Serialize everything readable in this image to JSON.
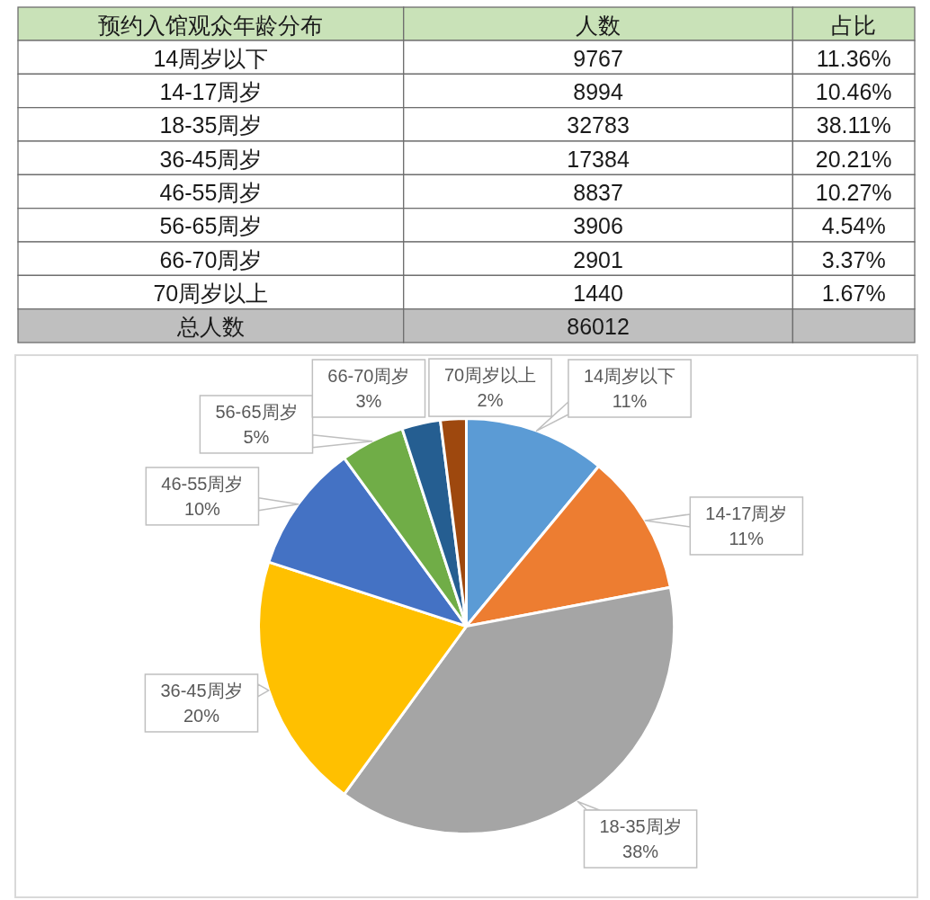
{
  "chart_data": [
    {
      "type": "other",
      "title": "预约入馆观众年龄分布",
      "categories": [
        "14周岁以下",
        "14-17周岁",
        "18-35周岁",
        "36-45周岁",
        "46-55周岁",
        "56-65周岁",
        "66-70周岁",
        "70周岁以上",
        "总人数"
      ],
      "series": [
        {
          "name": "人数",
          "values": [
            9767,
            8994,
            32783,
            17384,
            8837,
            3906,
            2901,
            1440,
            86012
          ],
          "colors": [
            "#ffffff",
            "#ffffff",
            "#ffffff",
            "#ffffff",
            "#ffffff",
            "#ffffff",
            "#ffffff",
            "#ffffff",
            "#bfbfbf"
          ]
        },
        {
          "name": "占比",
          "values": [
            11.36,
            10.46,
            38.11,
            20.21,
            10.27,
            4.54,
            3.37,
            1.67,
            null
          ],
          "value_labels": [
            "11.36%",
            "10.46%",
            "38.11%",
            "20.21%",
            "10.27%",
            "4.54%",
            "3.37%",
            "1.67%",
            null
          ],
          "colors": [
            "#ffffff",
            "#ffffff",
            "#ffffff",
            "#ffffff",
            "#ffffff",
            "#ffffff",
            "#ffffff",
            "#ffffff",
            "#bfbfbf"
          ]
        }
      ],
      "data_labels": true,
      "colors": [
        "#ffffff",
        "#ffffff",
        "#ffffff",
        "#ffffff",
        "#ffffff",
        "#ffffff",
        "#ffffff",
        "#ffffff",
        "#bfbfbf"
      ]
    },
    {
      "type": "pie",
      "categories": [
        "14周岁以下",
        "14-17周岁",
        "18-35周岁",
        "36-45周岁",
        "46-55周岁",
        "56-65周岁",
        "66-70周岁",
        "70周岁以上"
      ],
      "values": [
        11,
        11,
        38,
        20,
        10,
        5,
        3,
        2
      ],
      "colors": [
        "#5b9bd5",
        "#ed7d31",
        "#a5a5a5",
        "#ffc000",
        "#4472c4",
        "#70ad47",
        "#255e91",
        "#9e480e"
      ],
      "value_labels": [
        "11%",
        "11%",
        "38%",
        "20%",
        "10%",
        "5%",
        "3%",
        "2%"
      ]
    }
  ]
}
